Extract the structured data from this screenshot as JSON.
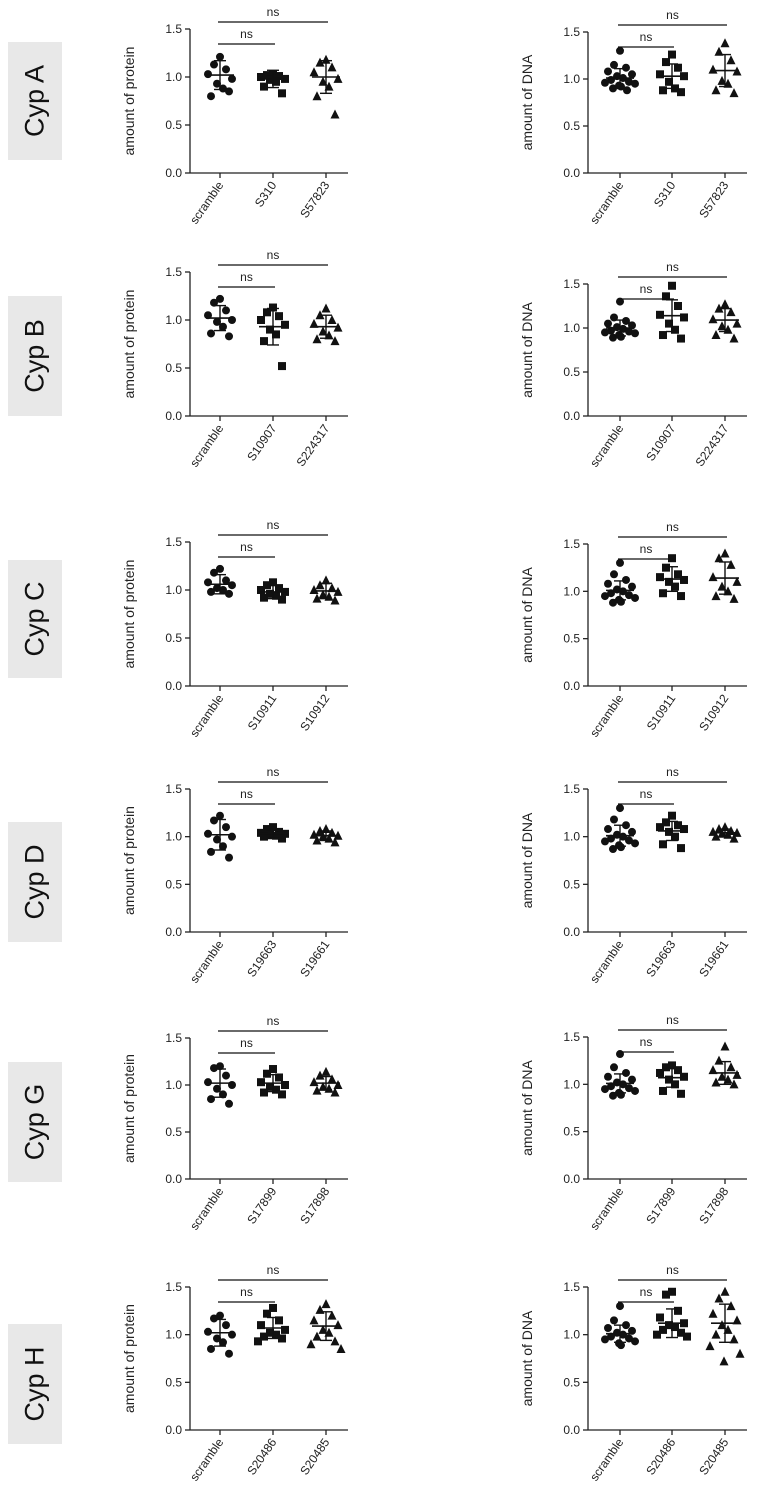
{
  "chart_data": [
    {
      "row_label": "Cyp A",
      "type": "scatter",
      "ylabel": "amount of protein",
      "ylim": [
        0,
        1.5
      ],
      "yticks": [
        "0.0",
        "0.5",
        "1.0",
        "1.5"
      ],
      "categories": [
        "scramble",
        "S310",
        "S57823"
      ],
      "markers": [
        "circle",
        "square",
        "triangle"
      ],
      "groups": [
        {
          "name": "scramble",
          "mean": 1.02,
          "sd": 0.15,
          "values": [
            1.21,
            1.13,
            1.08,
            1.03,
            0.98,
            0.93,
            0.88,
            0.8,
            0.85
          ]
        },
        {
          "name": "S310",
          "mean": 0.98,
          "sd": 0.09,
          "values": [
            1.03,
            1.02,
            1.01,
            1.0,
            0.98,
            0.97,
            0.95,
            0.9,
            0.83
          ]
        },
        {
          "name": "S57823",
          "mean": 1.0,
          "sd": 0.17,
          "values": [
            1.18,
            1.15,
            1.1,
            1.05,
            0.98,
            0.95,
            0.9,
            0.8,
            0.61
          ]
        }
      ],
      "annotations": [
        {
          "text": "ns",
          "from": "scramble",
          "to": "S310"
        },
        {
          "text": "ns",
          "from": "scramble",
          "to": "S57823"
        }
      ]
    },
    {
      "row_label": "Cyp A",
      "type": "scatter",
      "ylabel": "amount of DNA",
      "ylim": [
        0,
        1.5
      ],
      "yticks": [
        "0.0",
        "0.5",
        "1.0",
        "1.5"
      ],
      "categories": [
        "scramble",
        "S310",
        "S57823"
      ],
      "markers": [
        "circle",
        "square",
        "triangle"
      ],
      "groups": [
        {
          "name": "scramble",
          "mean": 1.01,
          "sd": 0.1,
          "values": [
            1.3,
            1.15,
            1.12,
            1.08,
            1.05,
            1.03,
            1.01,
            0.99,
            0.97,
            0.96,
            0.95,
            0.93,
            0.92,
            0.9,
            0.88
          ]
        },
        {
          "name": "S310",
          "mean": 1.03,
          "sd": 0.13,
          "values": [
            1.26,
            1.18,
            1.12,
            1.05,
            1.03,
            0.97,
            0.9,
            0.88,
            0.86
          ]
        },
        {
          "name": "S57823",
          "mean": 1.09,
          "sd": 0.17,
          "values": [
            1.38,
            1.29,
            1.2,
            1.1,
            1.08,
            0.98,
            0.95,
            0.88,
            0.85
          ]
        }
      ],
      "annotations": [
        {
          "text": "ns",
          "from": "scramble",
          "to": "S310"
        },
        {
          "text": "ns",
          "from": "scramble",
          "to": "S57823"
        }
      ]
    },
    {
      "row_label": "Cyp B",
      "type": "scatter",
      "ylabel": "amount of protein",
      "ylim": [
        0,
        1.5
      ],
      "yticks": [
        "0.0",
        "0.5",
        "1.0",
        "1.5"
      ],
      "categories": [
        "scramble",
        "S10907",
        "S224317"
      ],
      "markers": [
        "circle",
        "square",
        "triangle"
      ],
      "groups": [
        {
          "name": "scramble",
          "mean": 1.02,
          "sd": 0.13,
          "values": [
            1.22,
            1.18,
            1.1,
            1.05,
            1.0,
            0.98,
            0.93,
            0.86,
            0.83
          ]
        },
        {
          "name": "S10907",
          "mean": 0.93,
          "sd": 0.19,
          "values": [
            1.13,
            1.08,
            1.04,
            1.0,
            0.95,
            0.9,
            0.85,
            0.78,
            0.52
          ]
        },
        {
          "name": "S224317",
          "mean": 0.93,
          "sd": 0.12,
          "values": [
            1.12,
            1.05,
            1.0,
            0.96,
            0.92,
            0.88,
            0.84,
            0.8,
            0.78
          ]
        }
      ],
      "annotations": [
        {
          "text": "ns",
          "from": "scramble",
          "to": "S10907"
        },
        {
          "text": "ns",
          "from": "scramble",
          "to": "S224317"
        }
      ]
    },
    {
      "row_label": "Cyp B",
      "type": "scatter",
      "ylabel": "amount of DNA",
      "ylim": [
        0,
        1.5
      ],
      "yticks": [
        "0.0",
        "0.5",
        "1.0",
        "1.5"
      ],
      "categories": [
        "scramble",
        "S10907",
        "S224317"
      ],
      "markers": [
        "circle",
        "square",
        "triangle"
      ],
      "groups": [
        {
          "name": "scramble",
          "mean": 1.0,
          "sd": 0.09,
          "values": [
            1.3,
            1.12,
            1.08,
            1.05,
            1.03,
            1.01,
            0.99,
            0.97,
            0.96,
            0.95,
            0.94,
            0.92,
            0.9,
            0.89
          ]
        },
        {
          "name": "S10907",
          "mean": 1.14,
          "sd": 0.18,
          "values": [
            1.48,
            1.36,
            1.25,
            1.15,
            1.12,
            1.05,
            0.98,
            0.92,
            0.88
          ]
        },
        {
          "name": "S224317",
          "mean": 1.09,
          "sd": 0.13,
          "values": [
            1.27,
            1.22,
            1.18,
            1.1,
            1.05,
            1.02,
            0.98,
            0.92,
            0.88
          ]
        }
      ],
      "annotations": [
        {
          "text": "ns",
          "from": "scramble",
          "to": "S10907"
        },
        {
          "text": "ns",
          "from": "scramble",
          "to": "S224317"
        }
      ]
    },
    {
      "row_label": "Cyp C",
      "type": "scatter",
      "ylabel": "amount of protein",
      "ylim": [
        0,
        1.5
      ],
      "yticks": [
        "0.0",
        "0.5",
        "1.0",
        "1.5"
      ],
      "categories": [
        "scramble",
        "S10911",
        "S10912"
      ],
      "markers": [
        "circle",
        "square",
        "triangle"
      ],
      "groups": [
        {
          "name": "scramble",
          "mean": 1.06,
          "sd": 0.1,
          "values": [
            1.22,
            1.18,
            1.1,
            1.08,
            1.05,
            1.02,
            1.0,
            0.98,
            0.96
          ]
        },
        {
          "name": "S10911",
          "mean": 0.98,
          "sd": 0.07,
          "values": [
            1.08,
            1.05,
            1.02,
            1.0,
            0.98,
            0.96,
            0.94,
            0.92,
            0.9
          ]
        },
        {
          "name": "S10912",
          "mean": 0.99,
          "sd": 0.08,
          "values": [
            1.1,
            1.05,
            1.02,
            1.0,
            0.98,
            0.95,
            0.93,
            0.91,
            0.89
          ]
        }
      ],
      "annotations": [
        {
          "text": "ns",
          "from": "scramble",
          "to": "S10911"
        },
        {
          "text": "ns",
          "from": "scramble",
          "to": "S10912"
        }
      ]
    },
    {
      "row_label": "Cyp C",
      "type": "scatter",
      "ylabel": "amount of DNA",
      "ylim": [
        0,
        1.5
      ],
      "yticks": [
        "0.0",
        "0.5",
        "1.0",
        "1.5"
      ],
      "categories": [
        "scramble",
        "S10911",
        "S10912"
      ],
      "markers": [
        "circle",
        "square",
        "triangle"
      ],
      "groups": [
        {
          "name": "scramble",
          "mean": 1.01,
          "sd": 0.1,
          "values": [
            1.3,
            1.18,
            1.12,
            1.08,
            1.05,
            1.02,
            1.0,
            0.98,
            0.96,
            0.95,
            0.93,
            0.91,
            0.89,
            0.88
          ]
        },
        {
          "name": "S10911",
          "mean": 1.13,
          "sd": 0.13,
          "values": [
            1.35,
            1.25,
            1.18,
            1.15,
            1.12,
            1.1,
            1.05,
            0.98,
            0.95
          ]
        },
        {
          "name": "S10912",
          "mean": 1.14,
          "sd": 0.17,
          "values": [
            1.4,
            1.35,
            1.28,
            1.15,
            1.1,
            1.05,
            1.0,
            0.95,
            0.92
          ]
        }
      ],
      "annotations": [
        {
          "text": "ns",
          "from": "scramble",
          "to": "S10911"
        },
        {
          "text": "ns",
          "from": "scramble",
          "to": "S10912"
        }
      ]
    },
    {
      "row_label": "Cyp D",
      "type": "scatter",
      "ylabel": "amount of protein",
      "ylim": [
        0,
        1.5
      ],
      "yticks": [
        "0.0",
        "0.5",
        "1.0",
        "1.5"
      ],
      "categories": [
        "scramble",
        "S19663",
        "S19661"
      ],
      "markers": [
        "circle",
        "square",
        "triangle"
      ],
      "groups": [
        {
          "name": "scramble",
          "mean": 1.02,
          "sd": 0.16,
          "values": [
            1.22,
            1.17,
            1.1,
            1.03,
            1.0,
            0.97,
            0.9,
            0.84,
            0.78
          ]
        },
        {
          "name": "S19663",
          "mean": 1.03,
          "sd": 0.05,
          "values": [
            1.1,
            1.08,
            1.05,
            1.04,
            1.03,
            1.02,
            1.01,
            1.0,
            0.98
          ]
        },
        {
          "name": "S19661",
          "mean": 1.01,
          "sd": 0.05,
          "values": [
            1.08,
            1.06,
            1.04,
            1.02,
            1.01,
            1.0,
            0.98,
            0.96,
            0.94
          ]
        }
      ],
      "annotations": [
        {
          "text": "ns",
          "from": "scramble",
          "to": "S19663"
        },
        {
          "text": "ns",
          "from": "scramble",
          "to": "S19661"
        }
      ]
    },
    {
      "row_label": "Cyp D",
      "type": "scatter",
      "ylabel": "amount of DNA",
      "ylim": [
        0,
        1.5
      ],
      "yticks": [
        "0.0",
        "0.5",
        "1.0",
        "1.5"
      ],
      "categories": [
        "scramble",
        "S19663",
        "S19661"
      ],
      "markers": [
        "circle",
        "square",
        "triangle"
      ],
      "groups": [
        {
          "name": "scramble",
          "mean": 1.01,
          "sd": 0.11,
          "values": [
            1.3,
            1.18,
            1.12,
            1.08,
            1.05,
            1.02,
            1.0,
            0.98,
            0.96,
            0.95,
            0.93,
            0.91,
            0.89,
            0.87
          ]
        },
        {
          "name": "S19663",
          "mean": 1.06,
          "sd": 0.1,
          "values": [
            1.22,
            1.15,
            1.12,
            1.1,
            1.08,
            1.05,
            1.0,
            0.92,
            0.88
          ]
        },
        {
          "name": "S19661",
          "mean": 1.04,
          "sd": 0.04,
          "values": [
            1.1,
            1.08,
            1.06,
            1.05,
            1.04,
            1.03,
            1.02,
            1.0,
            0.98
          ]
        }
      ],
      "annotations": [
        {
          "text": "ns",
          "from": "scramble",
          "to": "S19663"
        },
        {
          "text": "ns",
          "from": "scramble",
          "to": "S19661"
        }
      ]
    },
    {
      "row_label": "Cyp G",
      "type": "scatter",
      "ylabel": "amount of protein",
      "ylim": [
        0,
        1.5
      ],
      "yticks": [
        "0.0",
        "0.5",
        "1.0",
        "1.5"
      ],
      "categories": [
        "scramble",
        "S17899",
        "S17898"
      ],
      "markers": [
        "circle",
        "square",
        "triangle"
      ],
      "groups": [
        {
          "name": "scramble",
          "mean": 1.02,
          "sd": 0.15,
          "values": [
            1.2,
            1.18,
            1.1,
            1.03,
            1.0,
            0.96,
            0.9,
            0.85,
            0.8
          ]
        },
        {
          "name": "S17899",
          "mean": 1.02,
          "sd": 0.09,
          "values": [
            1.17,
            1.12,
            1.08,
            1.03,
            1.0,
            0.98,
            0.95,
            0.92,
            0.9
          ]
        },
        {
          "name": "S17898",
          "mean": 1.02,
          "sd": 0.07,
          "values": [
            1.14,
            1.1,
            1.06,
            1.03,
            1.0,
            0.98,
            0.96,
            0.94,
            0.92
          ]
        }
      ],
      "annotations": [
        {
          "text": "ns",
          "from": "scramble",
          "to": "S17899"
        },
        {
          "text": "ns",
          "from": "scramble",
          "to": "S17898"
        }
      ]
    },
    {
      "row_label": "Cyp G",
      "type": "scatter",
      "ylabel": "amount of DNA",
      "ylim": [
        0,
        1.5
      ],
      "yticks": [
        "0.0",
        "0.5",
        "1.0",
        "1.5"
      ],
      "categories": [
        "scramble",
        "S17899",
        "S17898"
      ],
      "markers": [
        "circle",
        "square",
        "triangle"
      ],
      "groups": [
        {
          "name": "scramble",
          "mean": 1.01,
          "sd": 0.1,
          "values": [
            1.32,
            1.18,
            1.12,
            1.08,
            1.05,
            1.02,
            1.0,
            0.98,
            0.96,
            0.95,
            0.93,
            0.91,
            0.89,
            0.88
          ]
        },
        {
          "name": "S17899",
          "mean": 1.07,
          "sd": 0.1,
          "values": [
            1.2,
            1.18,
            1.15,
            1.12,
            1.08,
            1.05,
            1.0,
            0.93,
            0.9
          ]
        },
        {
          "name": "S17898",
          "mean": 1.12,
          "sd": 0.12,
          "values": [
            1.4,
            1.25,
            1.18,
            1.15,
            1.1,
            1.08,
            1.05,
            1.02,
            1.0
          ]
        }
      ],
      "annotations": [
        {
          "text": "ns",
          "from": "scramble",
          "to": "S17899"
        },
        {
          "text": "ns",
          "from": "scramble",
          "to": "S17898"
        }
      ]
    },
    {
      "row_label": "Cyp H",
      "type": "scatter",
      "ylabel": "amount of protein",
      "ylim": [
        0,
        1.5
      ],
      "yticks": [
        "0.0",
        "0.5",
        "1.0",
        "1.5"
      ],
      "categories": [
        "scramble",
        "S20486",
        "S20485"
      ],
      "markers": [
        "circle",
        "square",
        "triangle"
      ],
      "groups": [
        {
          "name": "scramble",
          "mean": 1.02,
          "sd": 0.14,
          "values": [
            1.2,
            1.17,
            1.1,
            1.03,
            1.0,
            0.96,
            0.92,
            0.85,
            0.8
          ]
        },
        {
          "name": "S20486",
          "mean": 1.07,
          "sd": 0.11,
          "values": [
            1.28,
            1.22,
            1.15,
            1.1,
            1.05,
            1.02,
            1.0,
            0.98,
            0.96,
            0.93
          ]
        },
        {
          "name": "S20485",
          "mean": 1.09,
          "sd": 0.15,
          "values": [
            1.32,
            1.26,
            1.2,
            1.15,
            1.1,
            1.05,
            1.02,
            0.98,
            0.93,
            0.9,
            0.85
          ]
        }
      ],
      "annotations": [
        {
          "text": "ns",
          "from": "scramble",
          "to": "S20486"
        },
        {
          "text": "ns",
          "from": "scramble",
          "to": "S20485"
        }
      ]
    },
    {
      "row_label": "Cyp H",
      "type": "scatter",
      "ylabel": "amount of DNA",
      "ylim": [
        0,
        1.5
      ],
      "yticks": [
        "0.0",
        "0.5",
        "1.0",
        "1.5"
      ],
      "categories": [
        "scramble",
        "S20486",
        "S20485"
      ],
      "markers": [
        "circle",
        "square",
        "triangle"
      ],
      "groups": [
        {
          "name": "scramble",
          "mean": 1.01,
          "sd": 0.09,
          "values": [
            1.3,
            1.15,
            1.1,
            1.07,
            1.04,
            1.02,
            1.0,
            0.98,
            0.96,
            0.95,
            0.93,
            0.91,
            0.89
          ]
        },
        {
          "name": "S20486",
          "mean": 1.12,
          "sd": 0.15,
          "values": [
            1.45,
            1.42,
            1.25,
            1.18,
            1.12,
            1.1,
            1.08,
            1.05,
            1.02,
            1.0,
            0.98
          ]
        },
        {
          "name": "S20485",
          "mean": 1.12,
          "sd": 0.2,
          "values": [
            1.45,
            1.38,
            1.3,
            1.22,
            1.15,
            1.1,
            1.05,
            1.0,
            0.95,
            0.88,
            0.8,
            0.72
          ]
        }
      ],
      "annotations": [
        {
          "text": "ns",
          "from": "scramble",
          "to": "S20486"
        },
        {
          "text": "ns",
          "from": "scramble",
          "to": "S20485"
        }
      ]
    }
  ]
}
